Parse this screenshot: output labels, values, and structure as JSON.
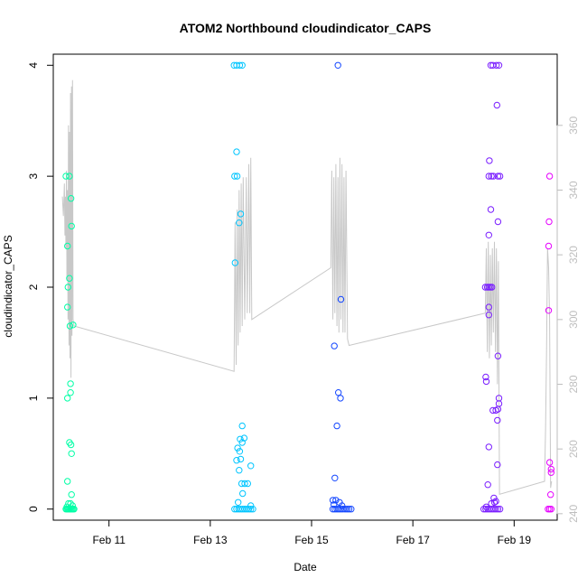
{
  "chart_data": {
    "type": "scatter",
    "title": "ATOM2 Northbound cloudindicator_CAPS",
    "xlabel": "Date",
    "ylabel": "cloudindicator_CAPS",
    "x_ticks": [
      "Feb 11",
      "Feb 13",
      "Feb 15",
      "Feb 17",
      "Feb 19"
    ],
    "x_tick_values": [
      11,
      13,
      15,
      17,
      19
    ],
    "xlim": [
      9.9,
      19.85
    ],
    "ylim": [
      -0.1,
      4.1
    ],
    "y_ticks": [
      0,
      1,
      2,
      3,
      4
    ],
    "y2lim": [
      238,
      382
    ],
    "y2_ticks": [
      240,
      260,
      280,
      300,
      320,
      340,
      360
    ],
    "grid": false,
    "legend": "none",
    "line_color": "#c8c8c8",
    "secondary_axis_color": "#bebebe",
    "series": [
      {
        "color": "#00ffa6",
        "points": [
          [
            10.15,
            3.0
          ],
          [
            10.22,
            3.0
          ],
          [
            10.25,
            2.8
          ],
          [
            10.26,
            2.55
          ],
          [
            10.18,
            2.37
          ],
          [
            10.22,
            2.08
          ],
          [
            10.19,
            2.0
          ],
          [
            10.18,
            1.82
          ],
          [
            10.23,
            1.65
          ],
          [
            10.29,
            1.66
          ],
          [
            10.24,
            1.13
          ],
          [
            10.24,
            1.05
          ],
          [
            10.18,
            1.0
          ],
          [
            10.22,
            0.6
          ],
          [
            10.25,
            0.58
          ],
          [
            10.26,
            0.5
          ],
          [
            10.18,
            0.25
          ],
          [
            10.26,
            0.13
          ],
          [
            10.2,
            0.05
          ],
          [
            10.24,
            0.05
          ],
          [
            10.28,
            0.03
          ],
          [
            10.17,
            0.02
          ],
          [
            10.15,
            0.0
          ],
          [
            10.17,
            0.0
          ],
          [
            10.19,
            0.0
          ],
          [
            10.21,
            0.0
          ],
          [
            10.23,
            0.0
          ],
          [
            10.25,
            0.0
          ],
          [
            10.27,
            0.0
          ],
          [
            10.29,
            0.0
          ],
          [
            10.31,
            0.0
          ]
        ]
      },
      {
        "color": "#00c5ff",
        "points": [
          [
            13.47,
            4.0
          ],
          [
            13.52,
            4.0
          ],
          [
            13.58,
            4.0
          ],
          [
            13.63,
            4.0
          ],
          [
            13.52,
            3.22
          ],
          [
            13.48,
            3.0
          ],
          [
            13.53,
            3.0
          ],
          [
            13.6,
            2.66
          ],
          [
            13.57,
            2.58
          ],
          [
            13.49,
            2.22
          ],
          [
            13.63,
            0.75
          ],
          [
            13.59,
            0.63
          ],
          [
            13.67,
            0.64
          ],
          [
            13.54,
            0.55
          ],
          [
            13.63,
            0.6
          ],
          [
            13.58,
            0.52
          ],
          [
            13.52,
            0.44
          ],
          [
            13.6,
            0.45
          ],
          [
            13.8,
            0.39
          ],
          [
            13.57,
            0.35
          ],
          [
            13.62,
            0.23
          ],
          [
            13.68,
            0.23
          ],
          [
            13.74,
            0.23
          ],
          [
            13.64,
            0.14
          ],
          [
            13.55,
            0.06
          ],
          [
            13.8,
            0.03
          ],
          [
            13.48,
            0.0
          ],
          [
            13.52,
            0.0
          ],
          [
            13.56,
            0.0
          ],
          [
            13.6,
            0.0
          ],
          [
            13.64,
            0.0
          ],
          [
            13.68,
            0.0
          ],
          [
            13.72,
            0.0
          ],
          [
            13.76,
            0.0
          ],
          [
            13.8,
            0.0
          ],
          [
            13.84,
            0.0
          ]
        ]
      },
      {
        "color": "#1447ff",
        "points": [
          [
            15.52,
            4.0
          ],
          [
            15.58,
            1.89
          ],
          [
            15.45,
            1.47
          ],
          [
            15.53,
            1.05
          ],
          [
            15.57,
            1.0
          ],
          [
            15.5,
            0.75
          ],
          [
            15.46,
            0.28
          ],
          [
            15.42,
            0.08
          ],
          [
            15.48,
            0.08
          ],
          [
            15.55,
            0.06
          ],
          [
            15.44,
            0.04
          ],
          [
            15.6,
            0.03
          ],
          [
            15.42,
            0.0
          ],
          [
            15.46,
            0.0
          ],
          [
            15.5,
            0.0
          ],
          [
            15.54,
            0.0
          ],
          [
            15.58,
            0.0
          ],
          [
            15.62,
            0.0
          ],
          [
            15.66,
            0.0
          ],
          [
            15.7,
            0.0
          ],
          [
            15.74,
            0.0
          ],
          [
            15.78,
            0.0
          ]
        ]
      },
      {
        "color": "#7a1eff",
        "points": [
          [
            18.54,
            4.0
          ],
          [
            18.58,
            4.0
          ],
          [
            18.65,
            4.0
          ],
          [
            18.7,
            4.0
          ],
          [
            18.66,
            3.64
          ],
          [
            18.51,
            3.14
          ],
          [
            18.5,
            3.0
          ],
          [
            18.55,
            3.0
          ],
          [
            18.59,
            3.0
          ],
          [
            18.68,
            3.0
          ],
          [
            18.72,
            3.0
          ],
          [
            18.54,
            2.7
          ],
          [
            18.68,
            2.59
          ],
          [
            18.5,
            2.47
          ],
          [
            18.43,
            2.0
          ],
          [
            18.47,
            2.0
          ],
          [
            18.5,
            2.0
          ],
          [
            18.53,
            2.0
          ],
          [
            18.56,
            2.0
          ],
          [
            18.5,
            1.82
          ],
          [
            18.5,
            1.75
          ],
          [
            18.68,
            1.38
          ],
          [
            18.44,
            1.19
          ],
          [
            18.45,
            1.15
          ],
          [
            18.7,
            1.0
          ],
          [
            18.7,
            0.95
          ],
          [
            18.68,
            0.9
          ],
          [
            18.58,
            0.89
          ],
          [
            18.64,
            0.89
          ],
          [
            18.67,
            0.8
          ],
          [
            18.5,
            0.56
          ],
          [
            18.67,
            0.4
          ],
          [
            18.48,
            0.22
          ],
          [
            18.6,
            0.1
          ],
          [
            18.64,
            0.07
          ],
          [
            18.55,
            0.05
          ],
          [
            18.61,
            0.06
          ],
          [
            18.45,
            0.02
          ],
          [
            18.4,
            0.0
          ],
          [
            18.44,
            0.0
          ],
          [
            18.48,
            0.0
          ],
          [
            18.52,
            0.0
          ],
          [
            18.56,
            0.0
          ],
          [
            18.6,
            0.0
          ],
          [
            18.64,
            0.0
          ],
          [
            18.68,
            0.0
          ],
          [
            18.72,
            0.0
          ]
        ]
      },
      {
        "color": "#e600ff",
        "points": [
          [
            19.7,
            3.0
          ],
          [
            19.69,
            2.59
          ],
          [
            19.68,
            2.37
          ],
          [
            19.68,
            1.79
          ],
          [
            19.7,
            0.42
          ],
          [
            19.73,
            0.36
          ],
          [
            19.73,
            0.33
          ],
          [
            19.72,
            0.13
          ],
          [
            19.67,
            0.0
          ],
          [
            19.7,
            0.0
          ],
          [
            19.73,
            0.0
          ]
        ]
      }
    ],
    "line_series": {
      "axis": "secondary",
      "points": [
        [
          10.08,
          338
        ],
        [
          10.1,
          332
        ],
        [
          10.12,
          342
        ],
        [
          10.13,
          326
        ],
        [
          10.14,
          338
        ],
        [
          10.15,
          322
        ],
        [
          10.16,
          346
        ],
        [
          10.17,
          312
        ],
        [
          10.18,
          340
        ],
        [
          10.19,
          300
        ],
        [
          10.2,
          360
        ],
        [
          10.21,
          292
        ],
        [
          10.22,
          358
        ],
        [
          10.23,
          288
        ],
        [
          10.24,
          370
        ],
        [
          10.25,
          282
        ],
        [
          10.26,
          372
        ],
        [
          10.27,
          295
        ],
        [
          10.28,
          374
        ],
        [
          10.29,
          300
        ],
        [
          10.31,
          298
        ],
        [
          13.47,
          284
        ],
        [
          13.49,
          330
        ],
        [
          13.51,
          286
        ],
        [
          13.53,
          334
        ],
        [
          13.55,
          292
        ],
        [
          13.57,
          340
        ],
        [
          13.59,
          296
        ],
        [
          13.61,
          342
        ],
        [
          13.63,
          298
        ],
        [
          13.65,
          344
        ],
        [
          13.68,
          300
        ],
        [
          13.71,
          344
        ],
        [
          13.73,
          302
        ],
        [
          13.76,
          348
        ],
        [
          13.78,
          302
        ],
        [
          13.8,
          350
        ],
        [
          13.82,
          300
        ],
        [
          15.38,
          316
        ],
        [
          15.4,
          346
        ],
        [
          15.42,
          300
        ],
        [
          15.44,
          344
        ],
        [
          15.46,
          302
        ],
        [
          15.48,
          348
        ],
        [
          15.5,
          298
        ],
        [
          15.52,
          344
        ],
        [
          15.54,
          296
        ],
        [
          15.56,
          350
        ],
        [
          15.58,
          300
        ],
        [
          15.6,
          348
        ],
        [
          15.62,
          296
        ],
        [
          15.64,
          344
        ],
        [
          15.66,
          296
        ],
        [
          15.68,
          346
        ],
        [
          15.71,
          294
        ],
        [
          15.74,
          292
        ],
        [
          18.43,
          302
        ],
        [
          18.45,
          322
        ],
        [
          18.47,
          290
        ],
        [
          18.49,
          324
        ],
        [
          18.51,
          288
        ],
        [
          18.53,
          320
        ],
        [
          18.55,
          292
        ],
        [
          18.57,
          322
        ],
        [
          18.59,
          296
        ],
        [
          18.61,
          324
        ],
        [
          18.63,
          290
        ],
        [
          18.65,
          322
        ],
        [
          18.67,
          280
        ],
        [
          18.69,
          318
        ],
        [
          18.71,
          246
        ],
        [
          19.6,
          250
        ],
        [
          19.62,
          266
        ],
        [
          19.64,
          290
        ],
        [
          19.66,
          322
        ],
        [
          19.68,
          316
        ],
        [
          19.7,
          300
        ],
        [
          19.72,
          248
        ],
        [
          19.74,
          250
        ]
      ]
    }
  }
}
